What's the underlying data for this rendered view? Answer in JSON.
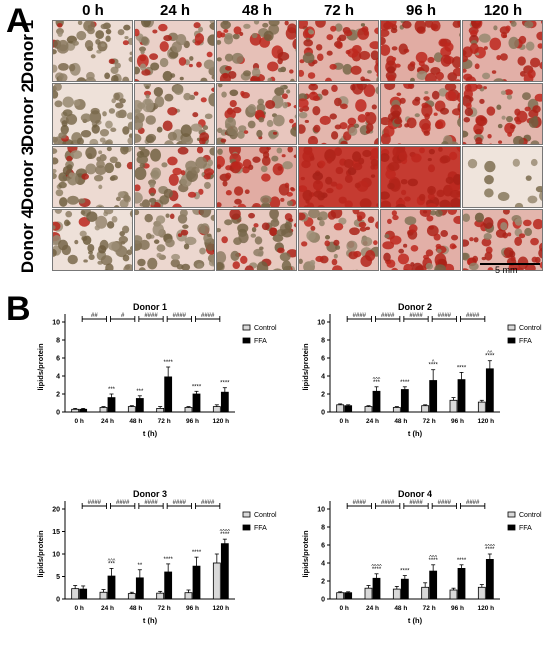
{
  "panel_a": {
    "letter": "A",
    "time_labels": [
      "0 h",
      "24 h",
      "48 h",
      "72 h",
      "96 h",
      "120 h"
    ],
    "donor_labels": [
      "Donor 1",
      "Donor 2",
      "Donor 3",
      "Donor 4"
    ],
    "scale_label": "5 mm",
    "stain_intensity": [
      [
        0.1,
        0.3,
        0.55,
        0.75,
        0.85,
        0.8
      ],
      [
        0.05,
        0.2,
        0.45,
        0.7,
        0.75,
        0.7
      ],
      [
        0.15,
        0.35,
        0.85,
        1.0,
        1.0,
        0.0
      ],
      [
        0.05,
        0.2,
        0.4,
        0.55,
        0.8,
        0.7
      ]
    ],
    "colors": {
      "stain": "#c0281e",
      "background": "#efe4dc",
      "cell": "#6b5a3a"
    }
  },
  "panel_b": {
    "letter": "B"
  },
  "chart_data": [
    {
      "type": "bar",
      "title": "Donor 1",
      "xlabel": "t (h)",
      "ylabel": "lipids/protein",
      "categories": [
        "0 h",
        "24 h",
        "48 h",
        "72 h",
        "96 h",
        "120 h"
      ],
      "ylim": [
        0,
        10
      ],
      "yticks": [
        0,
        2,
        4,
        6,
        8,
        10
      ],
      "series": [
        {
          "name": "Control",
          "values": [
            0.3,
            0.5,
            0.6,
            0.4,
            0.5,
            0.6
          ],
          "errors": [
            0.1,
            0.1,
            0.1,
            0.2,
            0.1,
            0.2
          ]
        },
        {
          "name": "FFA",
          "values": [
            0.3,
            1.6,
            1.5,
            3.9,
            2.0,
            2.2
          ],
          "errors": [
            0.1,
            0.4,
            0.3,
            1.1,
            0.3,
            0.5
          ]
        }
      ],
      "annotations": [
        "",
        "***",
        "***",
        "****",
        "****",
        "****"
      ],
      "caret_annotations": [
        "",
        "",
        "",
        "",
        "",
        ""
      ],
      "bracket_labels": [
        "##",
        "#",
        "####",
        "####",
        "####"
      ],
      "legend": [
        "Control",
        "FFA"
      ]
    },
    {
      "type": "bar",
      "title": "Donor 2",
      "xlabel": "t (h)",
      "ylabel": "lipids/protein",
      "categories": [
        "0 h",
        "24 h",
        "48 h",
        "72 h",
        "96 h",
        "120 h"
      ],
      "ylim": [
        0,
        10
      ],
      "yticks": [
        0,
        2,
        4,
        6,
        8,
        10
      ],
      "series": [
        {
          "name": "Control",
          "values": [
            0.8,
            0.6,
            0.5,
            0.7,
            1.3,
            1.1
          ],
          "errors": [
            0.1,
            0.1,
            0.1,
            0.1,
            0.3,
            0.2
          ]
        },
        {
          "name": "FFA",
          "values": [
            0.7,
            2.3,
            2.5,
            3.5,
            3.6,
            4.8
          ],
          "errors": [
            0.1,
            0.5,
            0.3,
            1.2,
            0.8,
            0.9
          ]
        }
      ],
      "annotations": [
        "",
        "***",
        "****",
        "****",
        "****",
        "****"
      ],
      "caret_annotations": [
        "",
        "^^^",
        "",
        "^",
        "",
        "^^"
      ],
      "bracket_labels": [
        "####",
        "####",
        "####",
        "####",
        "####"
      ],
      "legend": [
        "Control",
        "FFA"
      ]
    },
    {
      "type": "bar",
      "title": "Donor 3",
      "xlabel": "t (h)",
      "ylabel": "lipids/protein",
      "categories": [
        "0 h",
        "24 h",
        "48 h",
        "72 h",
        "96 h",
        "120 h"
      ],
      "ylim": [
        0,
        20
      ],
      "yticks": [
        0,
        5,
        10,
        15,
        20
      ],
      "series": [
        {
          "name": "Control",
          "values": [
            2.3,
            1.5,
            1.2,
            1.3,
            1.4,
            8.0
          ],
          "errors": [
            0.7,
            0.6,
            0.3,
            0.4,
            0.6,
            2.0
          ]
        },
        {
          "name": "FFA",
          "values": [
            2.2,
            5.1,
            4.7,
            6.0,
            7.3,
            12.3
          ],
          "errors": [
            0.7,
            1.7,
            1.8,
            1.8,
            2.0,
            1.0
          ]
        }
      ],
      "annotations": [
        "",
        "***",
        "**",
        "****",
        "****",
        "****"
      ],
      "caret_annotations": [
        "",
        "^^^",
        "",
        "",
        "",
        "^^^^"
      ],
      "bracket_labels": [
        "####",
        "####",
        "####",
        "####",
        "####"
      ],
      "legend": [
        "Control",
        "FFA"
      ]
    },
    {
      "type": "bar",
      "title": "Donor 4",
      "xlabel": "t (h)",
      "ylabel": "lipids/protein",
      "categories": [
        "0 h",
        "24 h",
        "48 h",
        "72 h",
        "96 h",
        "120 h"
      ],
      "ylim": [
        0,
        10
      ],
      "yticks": [
        0,
        2,
        4,
        6,
        8,
        10
      ],
      "series": [
        {
          "name": "Control",
          "values": [
            0.7,
            1.2,
            1.1,
            1.3,
            1.0,
            1.3
          ],
          "errors": [
            0.1,
            0.3,
            0.3,
            0.5,
            0.2,
            0.3
          ]
        },
        {
          "name": "FFA",
          "values": [
            0.7,
            2.3,
            2.2,
            3.1,
            3.4,
            4.4
          ],
          "errors": [
            0.1,
            0.5,
            0.4,
            0.7,
            0.4,
            0.6
          ]
        }
      ],
      "annotations": [
        "",
        "****",
        "****",
        "****",
        "****",
        "****"
      ],
      "caret_annotations": [
        "",
        "^^^^",
        "",
        "^^^",
        "",
        "^^^^"
      ],
      "bracket_labels": [
        "####",
        "####",
        "####",
        "####",
        "####"
      ],
      "legend": [
        "Control",
        "FFA"
      ]
    }
  ]
}
